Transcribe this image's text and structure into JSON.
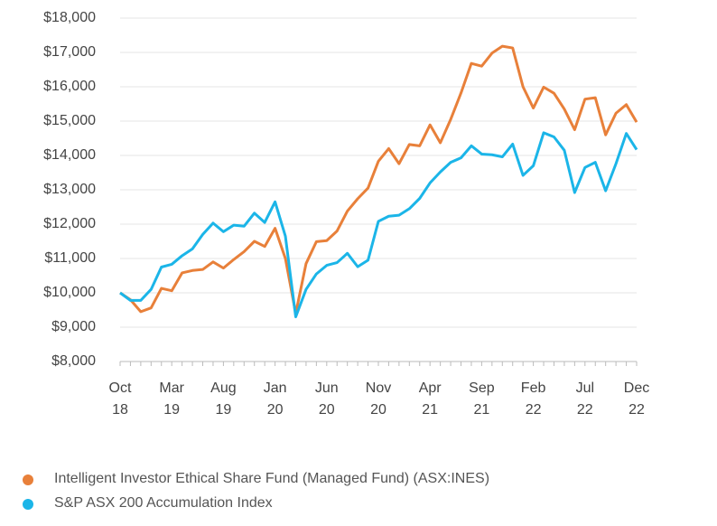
{
  "chart_data": {
    "type": "line",
    "categories": [
      "Oct 18",
      null,
      null,
      null,
      null,
      "Mar 19",
      null,
      null,
      null,
      null,
      "Aug 19",
      null,
      null,
      null,
      null,
      "Jan 20",
      null,
      null,
      null,
      null,
      "Jun 20",
      null,
      null,
      null,
      null,
      "Nov 20",
      null,
      null,
      null,
      null,
      "Apr 21",
      null,
      null,
      null,
      null,
      "Sep 21",
      null,
      null,
      null,
      null,
      "Feb 22",
      null,
      null,
      null,
      null,
      "Jul 22",
      null,
      null,
      null,
      null,
      "Dec 22"
    ],
    "series": [
      {
        "name": "Intelligent Investor Ethical Share Fund (Managed Fund) (ASX:INES)",
        "color": "#e8803a",
        "values": [
          10000,
          9800,
          9450,
          9560,
          10130,
          10060,
          10580,
          10650,
          10680,
          10900,
          10720,
          10970,
          11200,
          11500,
          11350,
          11880,
          11000,
          9400,
          10850,
          11490,
          11520,
          11800,
          12380,
          12740,
          13050,
          13830,
          14200,
          13760,
          14320,
          14280,
          14890,
          14370,
          15050,
          15820,
          16680,
          16600,
          16980,
          17180,
          17130,
          16000,
          15380,
          15990,
          15810,
          15350,
          14750,
          15640,
          15680,
          14600,
          15230,
          15480,
          14970
        ]
      },
      {
        "name": "S&P ASX 200 Accumulation Index",
        "color": "#1bb5e8",
        "values": [
          10000,
          9780,
          9780,
          10100,
          10750,
          10830,
          11080,
          11280,
          11700,
          12030,
          11780,
          11970,
          11940,
          12320,
          12050,
          12650,
          11650,
          9300,
          10100,
          10550,
          10800,
          10880,
          11150,
          10760,
          10950,
          12080,
          12230,
          12260,
          12450,
          12750,
          13200,
          13520,
          13800,
          13930,
          14280,
          14040,
          14020,
          13960,
          14330,
          13420,
          13700,
          14660,
          14540,
          14150,
          12920,
          13650,
          13800,
          12970,
          13760,
          14640,
          14170
        ]
      }
    ],
    "ylim": [
      8000,
      18000
    ],
    "yticks": [
      {
        "value": 8000,
        "label": "$8,000"
      },
      {
        "value": 9000,
        "label": "$9,000"
      },
      {
        "value": 10000,
        "label": "$10,000"
      },
      {
        "value": 11000,
        "label": "$11,000"
      },
      {
        "value": 12000,
        "label": "$12,000"
      },
      {
        "value": 13000,
        "label": "$13,000"
      },
      {
        "value": 14000,
        "label": "$14,000"
      },
      {
        "value": 15000,
        "label": "$15,000"
      },
      {
        "value": 16000,
        "label": "$16,000"
      },
      {
        "value": 17000,
        "label": "$17,000"
      },
      {
        "value": 18000,
        "label": "$18,000"
      }
    ],
    "grid": true
  }
}
